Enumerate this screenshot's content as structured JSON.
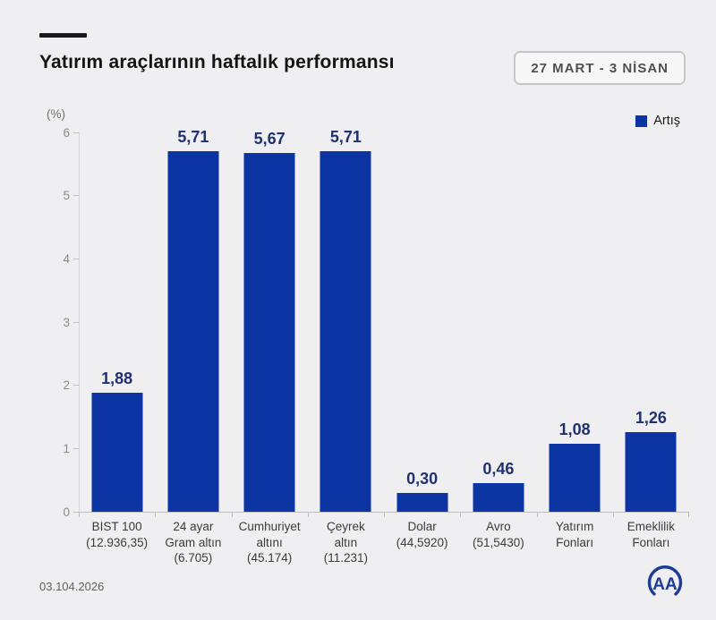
{
  "header": {
    "title": "Yatırım araçlarının haftalık performansı",
    "date_badge": "27 MART - 3 NİSAN"
  },
  "footer": {
    "date": "03.104.2026",
    "logo_text": "AA"
  },
  "colors": {
    "bar_blue": "#0c34a3",
    "value_label_navy": "#203070",
    "background": "#efeff1",
    "logo_navy": "#1e3c96"
  },
  "chart_data": {
    "type": "bar",
    "title": "Yatırım araçlarının haftalık performansı",
    "unit": "(%)",
    "ylabel": "(%)",
    "xlabel": "",
    "ylim": [
      0,
      6
    ],
    "yticks": [
      0,
      1,
      2,
      3,
      4,
      5,
      6
    ],
    "grid": false,
    "legend_position": "top-right",
    "legend": {
      "label": "Artış",
      "color": "#0c34a3"
    },
    "categories": [
      {
        "lines": [
          "BIST 100",
          "(12.936,35)"
        ]
      },
      {
        "lines": [
          "24 ayar",
          "Gram altın",
          "(6.705)"
        ]
      },
      {
        "lines": [
          "Cumhuriyet",
          "altını",
          "(45.174)"
        ]
      },
      {
        "lines": [
          "Çeyrek",
          "altın",
          "(11.231)"
        ]
      },
      {
        "lines": [
          "Dolar",
          "(44,5920)"
        ]
      },
      {
        "lines": [
          "Avro",
          "(51,5430)"
        ]
      },
      {
        "lines": [
          "Yatırım",
          "Fonları"
        ]
      },
      {
        "lines": [
          "Emeklilik",
          "Fonları"
        ]
      }
    ],
    "values": [
      1.88,
      5.71,
      5.67,
      5.71,
      0.3,
      0.46,
      1.08,
      1.26
    ],
    "value_labels": [
      "1,88",
      "5,71",
      "5,67",
      "5,71",
      "0,30",
      "0,46",
      "1,08",
      "1,26"
    ]
  }
}
